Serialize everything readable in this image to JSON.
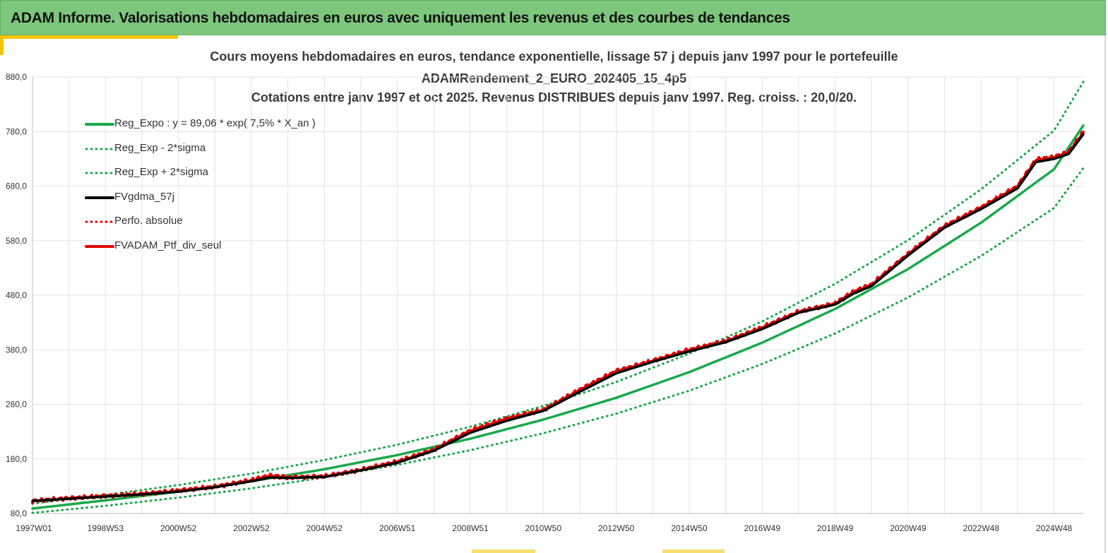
{
  "banner": {
    "title": "ADAM Informe. Valorisations hebdomadaires en euros avec uniquement les revenus et des courbes de tendances"
  },
  "colors": {
    "banner_bg": "#7dc77d",
    "accent": "#f5c400",
    "green": "#1aa84a",
    "black": "#000000",
    "red": "#e00000",
    "grid": "#e3e3e3"
  },
  "chart_data": {
    "type": "line",
    "title_lines": [
      "Cours moyens hebdomadaires  en euros, tendance exponentielle, lissage 57 j depuis janv 1997 pour le portefeuille",
      "ADAMRendement_2_EURO_202405_15_4p5",
      "Cotations  entre janv 1997 et oct 2025. Revenus DISTRIBUES depuis janv 1997. Reg. croiss. : 20,0/20."
    ],
    "xlabel": "",
    "ylabel": "",
    "x_range_years": [
      1997.0,
      2025.8
    ],
    "ylim": [
      80,
      880
    ],
    "y_ticks": [
      "80,0",
      "180,0",
      "280,0",
      "380,0",
      "480,0",
      "580,0",
      "680,0",
      "780,0",
      "880,0"
    ],
    "x_ticks": [
      {
        "label": "1997W01",
        "t": 1997.0
      },
      {
        "label": "1998W53",
        "t": 1999.0
      },
      {
        "label": "2000W52",
        "t": 2001.0
      },
      {
        "label": "2002W52",
        "t": 2003.0
      },
      {
        "label": "2004W52",
        "t": 2005.0
      },
      {
        "label": "2006W51",
        "t": 2007.0
      },
      {
        "label": "2008W51",
        "t": 2009.0
      },
      {
        "label": "2010W50",
        "t": 2011.0
      },
      {
        "label": "2012W50",
        "t": 2013.0
      },
      {
        "label": "2014W50",
        "t": 2015.0
      },
      {
        "label": "2016W49",
        "t": 2017.0
      },
      {
        "label": "2018W49",
        "t": 2019.0
      },
      {
        "label": "2020W49",
        "t": 2021.0
      },
      {
        "label": "2022W48",
        "t": 2023.0
      },
      {
        "label": "2024W48",
        "t": 2025.0
      }
    ],
    "grid": true,
    "legend_position": "top-left",
    "legend": [
      {
        "label": "Reg_Expo : y = 89,06 * exp( 7,5% *  X_an )",
        "color": "#1aa84a",
        "style": "solid"
      },
      {
        "label": "Reg_Exp - 2*sigma",
        "color": "#1aa84a",
        "style": "dotted"
      },
      {
        "label": "Reg_Exp + 2*sigma",
        "color": "#1aa84a",
        "style": "dotted"
      },
      {
        "label": "FVgdma_57j",
        "color": "#000000",
        "style": "solid"
      },
      {
        "label": "Perfo. absolue",
        "color": "#e00000",
        "style": "dotted"
      },
      {
        "label": "FVADAM_Ptf_div_seul",
        "color": "#e00000",
        "style": "solid"
      }
    ],
    "series": [
      {
        "name": "Reg_Expo",
        "x": [
          1997.0,
          1999.0,
          2001.0,
          2003.0,
          2005.0,
          2007.0,
          2009.0,
          2011.0,
          2013.0,
          2015.0,
          2017.0,
          2019.0,
          2021.0,
          2023.0,
          2025.0,
          2025.8
        ],
        "values": [
          89,
          104,
          120,
          139,
          161,
          187,
          217,
          252,
          292,
          339,
          393,
          455,
          528,
          613,
          711,
          791
        ]
      },
      {
        "name": "Reg_Exp - 2*sigma",
        "x": [
          1997.0,
          1999.0,
          2001.0,
          2003.0,
          2005.0,
          2007.0,
          2009.0,
          2011.0,
          2013.0,
          2015.0,
          2017.0,
          2019.0,
          2021.0,
          2023.0,
          2025.0,
          2025.8
        ],
        "values": [
          81,
          94,
          109,
          126,
          146,
          169,
          196,
          227,
          263,
          305,
          354,
          410,
          476,
          552,
          640,
          713
        ]
      },
      {
        "name": "Reg_Exp + 2*sigma",
        "x": [
          1997.0,
          1999.0,
          2001.0,
          2003.0,
          2005.0,
          2007.0,
          2009.0,
          2011.0,
          2013.0,
          2015.0,
          2017.0,
          2019.0,
          2021.0,
          2023.0,
          2025.0,
          2025.8
        ],
        "values": [
          98,
          114,
          132,
          153,
          178,
          206,
          239,
          277,
          321,
          373,
          432,
          501,
          581,
          674,
          782,
          871
        ]
      },
      {
        "name": "FVgdma_57j",
        "x": [
          1997.0,
          1998.0,
          1999.0,
          2000.0,
          2001.0,
          2002.0,
          2003.0,
          2003.5,
          2004.0,
          2005.0,
          2006.0,
          2007.0,
          2008.0,
          2009.0,
          2010.0,
          2011.0,
          2012.0,
          2013.0,
          2014.0,
          2015.0,
          2016.0,
          2017.0,
          2018.0,
          2019.0,
          2019.5,
          2020.0,
          2021.0,
          2022.0,
          2023.0,
          2024.0,
          2024.5,
          2025.0,
          2025.4,
          2025.8
        ],
        "values": [
          103,
          107,
          111,
          115,
          120,
          128,
          139,
          146,
          145,
          147,
          159,
          173,
          195,
          228,
          250,
          268,
          303,
          337,
          358,
          377,
          394,
          418,
          448,
          463,
          483,
          497,
          553,
          604,
          638,
          676,
          724,
          730,
          739,
          775
        ]
      },
      {
        "name": "FVADAM_Ptf_div_seul",
        "x": [
          1997.0,
          1998.0,
          1999.0,
          2000.0,
          2001.0,
          2002.0,
          2003.0,
          2003.5,
          2004.0,
          2005.0,
          2006.0,
          2007.0,
          2008.0,
          2009.0,
          2010.0,
          2011.0,
          2012.0,
          2013.0,
          2014.0,
          2015.0,
          2016.0,
          2017.0,
          2018.0,
          2019.0,
          2019.5,
          2020.0,
          2021.0,
          2022.0,
          2023.0,
          2024.0,
          2024.5,
          2025.0,
          2025.4,
          2025.8
        ],
        "values": [
          103,
          108,
          112,
          116,
          122,
          129,
          141,
          149,
          146,
          148,
          160,
          175,
          197,
          232,
          254,
          270,
          307,
          341,
          360,
          380,
          396,
          421,
          450,
          465,
          486,
          500,
          556,
          607,
          641,
          680,
          728,
          733,
          742,
          779
        ]
      }
    ]
  }
}
